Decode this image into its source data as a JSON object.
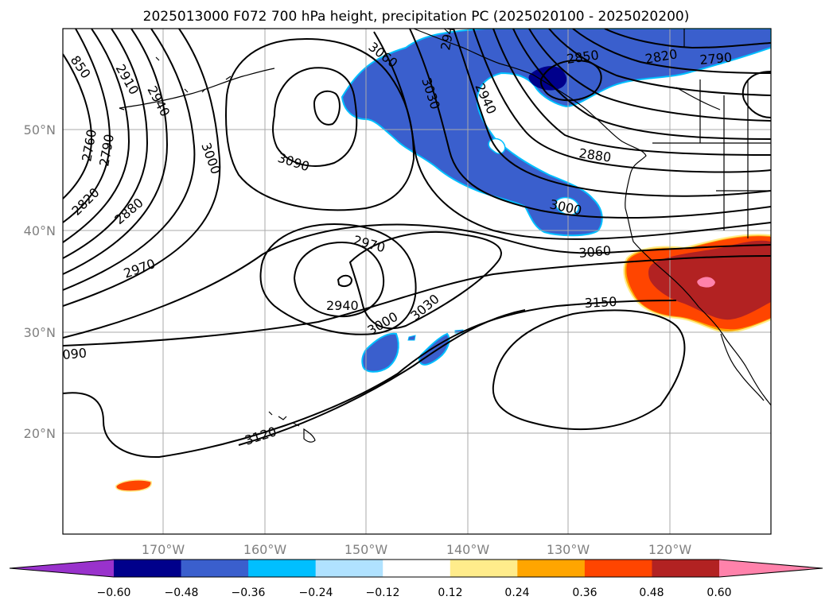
{
  "title": "2025013000 F072 700 hPa height, precipitation PC (2025020100 - 2025020200)",
  "map": {
    "lat_ticks": [
      "50°N",
      "40°N",
      "30°N",
      "20°N"
    ],
    "lon_ticks": [
      "170°W",
      "160°W",
      "150°W",
      "140°W",
      "130°W",
      "120°W"
    ],
    "grid": true,
    "land_outline_color": "#000000"
  },
  "height_contours": {
    "units": "gpm",
    "labels": [
      "850",
      "2910",
      "2940",
      "2760",
      "2790",
      "3000",
      "2820",
      "2880",
      "2970",
      "3060",
      "3030",
      "3090",
      "2940",
      "2970",
      "2940",
      "3000",
      "3030",
      "2940",
      "2850",
      "2820",
      "2790",
      "2880",
      "3000",
      "3060",
      "3150",
      "090",
      "3120"
    ]
  },
  "colorbar": {
    "tick_labels": [
      "−0.60",
      "−0.48",
      "−0.36",
      "−0.24",
      "−0.12",
      "0.12",
      "0.24",
      "0.36",
      "0.48",
      "0.60"
    ],
    "colors": [
      "#9932cc",
      "#00008b",
      "#3a5fcd",
      "#00bfff",
      "#b0e2ff",
      "#ffffff",
      "#ffec8b",
      "#ffa500",
      "#ff4500",
      "#b22222",
      "#ff82ab"
    ]
  }
}
